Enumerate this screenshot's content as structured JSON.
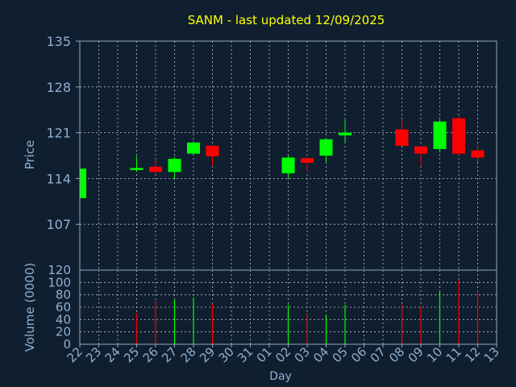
{
  "chart_data": {
    "type": "candlestick",
    "title": "SANM - last updated 12/09/2025",
    "xlabel": "Day",
    "price_panel": {
      "ylabel": "Price",
      "ylim": [
        100,
        135
      ],
      "yticks": [
        107,
        114,
        121,
        128,
        135
      ],
      "candles": [
        {
          "day": "22",
          "open": 111.0,
          "high": 115.5,
          "low": 111.0,
          "close": 115.5
        },
        {
          "day": "25",
          "open": 115.3,
          "high": 117.4,
          "low": 115.0,
          "close": 115.6
        },
        {
          "day": "26",
          "open": 115.8,
          "high": 117.0,
          "low": 114.8,
          "close": 115.0
        },
        {
          "day": "27",
          "open": 115.0,
          "high": 117.3,
          "low": 114.0,
          "close": 117.0
        },
        {
          "day": "28",
          "open": 117.8,
          "high": 119.7,
          "low": 117.5,
          "close": 119.5
        },
        {
          "day": "29",
          "open": 119.0,
          "high": 119.0,
          "low": 116.0,
          "close": 117.4
        },
        {
          "day": "02",
          "open": 114.8,
          "high": 117.5,
          "low": 114.0,
          "close": 117.2
        },
        {
          "day": "03",
          "open": 117.1,
          "high": 117.3,
          "low": 115.0,
          "close": 116.4
        },
        {
          "day": "04",
          "open": 117.5,
          "high": 120.0,
          "low": 116.5,
          "close": 120.0
        },
        {
          "day": "05",
          "open": 120.6,
          "high": 123.0,
          "low": 119.5,
          "close": 121.0
        },
        {
          "day": "08",
          "open": 121.5,
          "high": 123.0,
          "low": 119.0,
          "close": 119.0
        },
        {
          "day": "09",
          "open": 118.9,
          "high": 118.9,
          "low": 116.0,
          "close": 117.8
        },
        {
          "day": "10",
          "open": 118.5,
          "high": 123.0,
          "low": 118.0,
          "close": 122.7
        },
        {
          "day": "11",
          "open": 123.2,
          "high": 123.5,
          "low": 117.6,
          "close": 117.8
        },
        {
          "day": "12",
          "open": 118.3,
          "high": 119.2,
          "low": 116.5,
          "close": 117.2
        }
      ]
    },
    "volume_panel": {
      "ylabel": "Volume (0000)",
      "ylim": [
        0,
        120
      ],
      "yticks": [
        0,
        20,
        40,
        60,
        80,
        100,
        120
      ],
      "volumes": [
        {
          "day": "25",
          "value": 50,
          "dir": "down"
        },
        {
          "day": "26",
          "value": 70,
          "dir": "down"
        },
        {
          "day": "27",
          "value": 72,
          "dir": "up"
        },
        {
          "day": "28",
          "value": 76,
          "dir": "up"
        },
        {
          "day": "29",
          "value": 66,
          "dir": "down"
        },
        {
          "day": "02",
          "value": 64,
          "dir": "up"
        },
        {
          "day": "03",
          "value": 50,
          "dir": "down"
        },
        {
          "day": "04",
          "value": 48,
          "dir": "up"
        },
        {
          "day": "05",
          "value": 64,
          "dir": "up"
        },
        {
          "day": "08",
          "value": 64,
          "dir": "down"
        },
        {
          "day": "09",
          "value": 61,
          "dir": "down"
        },
        {
          "day": "10",
          "value": 86,
          "dir": "up"
        },
        {
          "day": "11",
          "value": 104,
          "dir": "down"
        },
        {
          "day": "12",
          "value": 86,
          "dir": "down"
        }
      ]
    },
    "x_categories": [
      "22",
      "23",
      "24",
      "25",
      "26",
      "27",
      "28",
      "29",
      "30",
      "31",
      "01",
      "02",
      "03",
      "04",
      "05",
      "06",
      "07",
      "08",
      "09",
      "10",
      "11",
      "12",
      "13"
    ],
    "grid": true,
    "colors": {
      "background": "#0f1f30",
      "up": "#00ff00",
      "down": "#ff0000",
      "title": "#ffff00",
      "axis_text": "#8fb0d0",
      "grid": "#b8c4d0",
      "frame": "#8fa8c0"
    }
  }
}
